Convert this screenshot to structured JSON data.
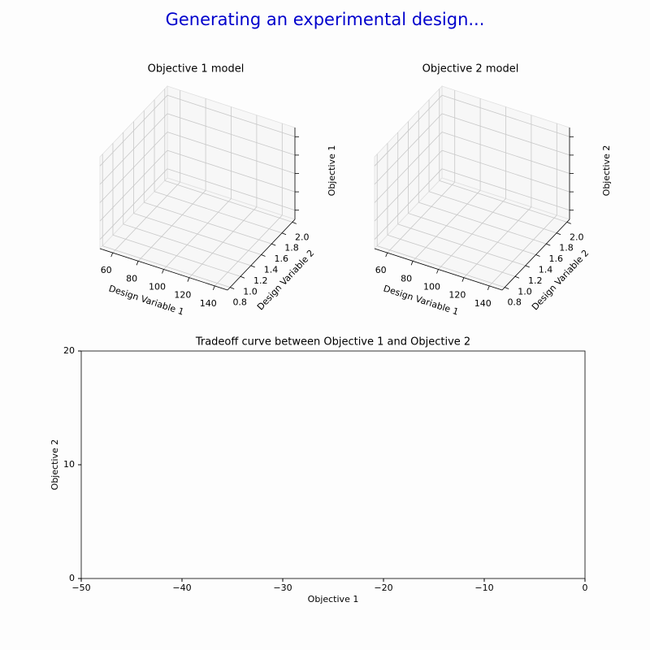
{
  "title": "Generating an experimental design...",
  "chart_data": [
    {
      "type": "surface3d",
      "title": "Objective 1 model",
      "xlabel": "Design Variable 1",
      "ylabel": "Design Variable 2",
      "zlabel": "Objective 1",
      "xlim": [
        50,
        150
      ],
      "xticks": [
        60,
        80,
        100,
        120,
        140
      ],
      "ylim": [
        0.75,
        2.05
      ],
      "yticks": [
        0.8,
        {
          "value": 1,
          "label": "1.0"
        },
        1.2,
        1.4,
        1.6,
        1.8,
        {
          "value": 2,
          "label": "2.0"
        }
      ],
      "grid": true
    },
    {
      "type": "surface3d",
      "title": "Objective 2 model",
      "xlabel": "Design Variable 1",
      "ylabel": "Design Variable 2",
      "zlabel": "Objective 2",
      "xlim": [
        50,
        150
      ],
      "xticks": [
        60,
        80,
        100,
        120,
        140
      ],
      "ylim": [
        0.75,
        2.05
      ],
      "yticks": [
        0.8,
        {
          "value": 1,
          "label": "1.0"
        },
        1.2,
        1.4,
        1.6,
        1.8,
        {
          "value": 2,
          "label": "2.0"
        }
      ],
      "grid": true
    },
    {
      "type": "line",
      "title": "Tradeoff curve between Objective 1 and Objective 2",
      "xlabel": "Objective 1",
      "ylabel": "Objective 2",
      "xlim": [
        -50,
        0
      ],
      "xticks": [
        {
          "value": -50,
          "label": "−50"
        },
        {
          "value": -40,
          "label": "−40"
        },
        {
          "value": -30,
          "label": "−30"
        },
        {
          "value": -20,
          "label": "−20"
        },
        {
          "value": -10,
          "label": "−10"
        },
        0
      ],
      "ylim": [
        0,
        20
      ],
      "yticks": [
        0,
        10,
        20
      ]
    }
  ]
}
